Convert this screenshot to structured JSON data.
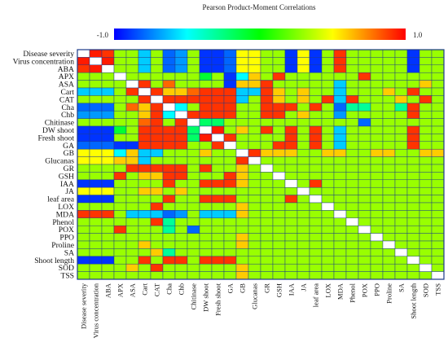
{
  "chart_data": {
    "type": "heatmap",
    "title": "Pearson Product-Moment Correlations",
    "colorbar": {
      "min_label": "-1.0",
      "max_label": "1.0",
      "min": -1.0,
      "max": 1.0,
      "colors": [
        "#0000ff",
        "#00ffff",
        "#00ff00",
        "#ffff00",
        "#ff0000"
      ]
    },
    "rows": [
      "Disease severity",
      "Virus concentration",
      "ABA",
      "APX",
      "ASA",
      "Cart",
      "CAT",
      "Cha",
      "Chb",
      "Chitinase",
      "DW shoot",
      "Fresh shoot",
      "GA",
      "GB",
      "Glucanas",
      "GR",
      "GSH",
      "IAA",
      "JA",
      "leaf area",
      "LOX",
      "MDA",
      "Phenol",
      "POX",
      "PPO",
      "Proline",
      "SA",
      "Shoot length",
      "SOD",
      "TSS"
    ],
    "columns": [
      "Disease severity",
      "Virus concentration",
      "ABA",
      "APX",
      "ASA",
      "Cart",
      "CAT",
      "Cha",
      "Chb",
      "Chitinase",
      "DW shoot",
      "Fresh shoot",
      "GA",
      "GB",
      "Glucanas",
      "GR",
      "GSH",
      "IAA",
      "JA",
      "leaf area",
      "LOX",
      "MDA",
      "Phenol",
      "POX",
      "PPO",
      "Proline",
      "SA",
      "Shoot length",
      "SOD",
      "TSS"
    ],
    "diagonal_color": "#ffffff",
    "values": [
      [
        1.0,
        0.95,
        0.9,
        0.3,
        0.3,
        -0.6,
        0.3,
        -0.8,
        -0.7,
        0.3,
        -0.9,
        -0.9,
        -0.8,
        0.5,
        0.5,
        0.3,
        0.3,
        -0.9,
        0.5,
        -0.9,
        0.3,
        0.9,
        0.3,
        0.3,
        0.3,
        0.3,
        0.3,
        -0.9,
        0.3,
        0.3
      ],
      [
        0.95,
        1.0,
        0.95,
        0.3,
        0.3,
        -0.6,
        0.3,
        -0.8,
        -0.7,
        0.3,
        -0.9,
        -0.9,
        -0.8,
        0.5,
        0.5,
        0.3,
        0.3,
        -0.9,
        0.5,
        -0.9,
        0.3,
        0.9,
        0.3,
        0.3,
        0.3,
        0.3,
        0.3,
        -0.9,
        0.3,
        0.3
      ],
      [
        0.9,
        0.95,
        1.0,
        0.3,
        0.3,
        -0.6,
        0.3,
        -0.8,
        -0.7,
        0.3,
        -0.9,
        -0.9,
        -0.8,
        0.5,
        0.5,
        0.3,
        0.3,
        -0.9,
        0.5,
        -0.9,
        0.3,
        0.9,
        0.3,
        0.3,
        0.3,
        0.3,
        0.3,
        -0.9,
        0.3,
        0.3
      ],
      [
        0.3,
        0.3,
        0.3,
        1.0,
        0.3,
        0.3,
        0.3,
        0.3,
        0.3,
        0.3,
        -0.1,
        0.3,
        -0.9,
        -0.5,
        0.6,
        0.3,
        0.9,
        0.3,
        0.3,
        0.3,
        0.3,
        0.3,
        0.3,
        0.9,
        0.3,
        0.3,
        0.3,
        0.3,
        0.3,
        0.3
      ],
      [
        0.3,
        0.3,
        0.3,
        0.3,
        1.0,
        0.9,
        0.3,
        0.8,
        0.3,
        0.3,
        0.3,
        0.3,
        -0.9,
        0.6,
        0.6,
        0.9,
        0.3,
        0.3,
        0.3,
        0.3,
        0.3,
        -0.6,
        0.3,
        0.3,
        0.3,
        0.3,
        0.3,
        0.3,
        0.6,
        0.3
      ],
      [
        -0.6,
        -0.6,
        -0.6,
        0.3,
        0.9,
        1.0,
        0.9,
        0.6,
        0.6,
        0.8,
        0.9,
        0.9,
        0.9,
        -0.6,
        -0.6,
        0.9,
        0.6,
        0.3,
        0.6,
        0.3,
        0.3,
        -0.6,
        0.3,
        0.3,
        0.3,
        0.6,
        0.3,
        0.9,
        0.3,
        0.3
      ],
      [
        0.3,
        0.3,
        0.3,
        0.3,
        0.3,
        0.9,
        1.0,
        0.9,
        0.9,
        0.9,
        0.9,
        0.9,
        0.9,
        -0.6,
        0.3,
        0.9,
        0.6,
        0.3,
        0.6,
        0.3,
        0.9,
        -0.6,
        0.9,
        0.3,
        0.3,
        0.3,
        0.6,
        0.3,
        0.9,
        0.3
      ],
      [
        -0.8,
        -0.8,
        -0.8,
        0.3,
        0.8,
        0.6,
        0.9,
        1.0,
        -0.5,
        0.3,
        0.9,
        0.9,
        0.9,
        0.3,
        0.3,
        0.9,
        0.9,
        0.9,
        0.3,
        0.9,
        0.3,
        -0.8,
        -0.3,
        -0.3,
        0.3,
        0.3,
        -0.3,
        0.9,
        0.3,
        0.3
      ],
      [
        -0.7,
        -0.7,
        -0.7,
        0.3,
        0.3,
        0.6,
        0.9,
        -0.5,
        1.0,
        0.9,
        0.9,
        0.9,
        0.9,
        0.3,
        0.3,
        0.9,
        0.9,
        0.3,
        0.6,
        0.3,
        0.3,
        -0.7,
        0.3,
        0.3,
        0.3,
        0.3,
        0.3,
        0.9,
        0.3,
        0.3
      ],
      [
        0.3,
        0.3,
        0.3,
        0.3,
        0.3,
        0.8,
        0.9,
        0.3,
        0.9,
        1.0,
        -0.2,
        -0.2,
        0.3,
        0.3,
        0.3,
        0.3,
        0.3,
        0.3,
        0.3,
        0.3,
        0.3,
        0.3,
        0.3,
        -0.8,
        0.3,
        0.3,
        0.3,
        0.3,
        0.3,
        0.3
      ],
      [
        -0.9,
        -0.9,
        -0.9,
        -0.1,
        0.3,
        0.9,
        0.9,
        0.9,
        0.9,
        -0.2,
        1.0,
        0.95,
        0.3,
        0.6,
        0.3,
        0.9,
        0.3,
        0.9,
        0.3,
        0.9,
        0.3,
        -0.6,
        0.3,
        0.3,
        0.3,
        0.3,
        0.3,
        0.9,
        0.3,
        0.3
      ],
      [
        -0.9,
        -0.9,
        -0.9,
        0.3,
        0.3,
        0.9,
        0.9,
        0.9,
        0.9,
        -0.2,
        0.95,
        1.0,
        0.9,
        0.3,
        0.3,
        0.3,
        0.3,
        0.9,
        0.3,
        0.9,
        0.3,
        -0.6,
        0.3,
        0.3,
        0.3,
        0.3,
        0.3,
        0.9,
        0.3,
        0.3
      ],
      [
        -0.8,
        -0.8,
        -0.8,
        -0.9,
        -0.9,
        0.9,
        0.9,
        0.9,
        0.9,
        0.3,
        0.3,
        0.9,
        1.0,
        0.3,
        0.3,
        0.3,
        0.9,
        0.9,
        0.3,
        0.9,
        0.3,
        -0.6,
        0.3,
        0.3,
        0.3,
        0.3,
        0.3,
        0.9,
        0.3,
        0.3
      ],
      [
        0.5,
        0.5,
        0.5,
        -0.5,
        0.6,
        -0.6,
        -0.6,
        0.3,
        0.3,
        0.3,
        0.6,
        0.3,
        0.3,
        1.0,
        0.9,
        0.6,
        0.6,
        0.6,
        0.3,
        0.3,
        0.6,
        0.6,
        0.3,
        0.3,
        0.6,
        0.6,
        0.3,
        0.3,
        0.6,
        0.6
      ],
      [
        0.5,
        0.5,
        0.5,
        0.6,
        0.6,
        -0.6,
        0.3,
        0.3,
        0.3,
        0.3,
        0.3,
        0.3,
        0.3,
        0.9,
        1.0,
        0.3,
        0.3,
        0.3,
        0.3,
        0.3,
        0.3,
        0.3,
        0.3,
        0.3,
        0.3,
        0.3,
        0.3,
        0.3,
        0.3,
        0.3
      ],
      [
        0.3,
        0.3,
        0.3,
        0.3,
        0.9,
        0.9,
        0.9,
        0.9,
        0.9,
        0.3,
        0.9,
        0.3,
        0.3,
        0.6,
        0.3,
        1.0,
        0.3,
        0.3,
        0.3,
        0.3,
        0.3,
        0.3,
        0.3,
        0.3,
        0.3,
        0.3,
        0.3,
        0.3,
        0.3,
        0.3
      ],
      [
        0.3,
        0.3,
        0.3,
        0.9,
        0.3,
        0.6,
        0.6,
        0.9,
        0.9,
        0.3,
        0.3,
        0.3,
        0.9,
        0.6,
        0.3,
        0.3,
        1.0,
        0.3,
        0.3,
        0.3,
        0.3,
        0.3,
        0.3,
        0.3,
        0.3,
        0.3,
        0.3,
        0.3,
        0.3,
        0.3
      ],
      [
        -0.9,
        -0.9,
        -0.9,
        0.3,
        0.3,
        0.3,
        0.3,
        0.9,
        0.3,
        0.3,
        0.9,
        0.9,
        0.9,
        0.6,
        0.3,
        0.3,
        0.3,
        1.0,
        0.3,
        0.9,
        0.3,
        0.3,
        0.3,
        0.3,
        0.3,
        0.3,
        0.3,
        0.3,
        0.3,
        0.3
      ],
      [
        0.5,
        0.5,
        0.5,
        0.3,
        0.3,
        0.6,
        0.6,
        0.3,
        0.6,
        0.3,
        0.3,
        0.3,
        0.3,
        0.3,
        0.3,
        0.3,
        0.3,
        0.3,
        1.0,
        0.3,
        0.3,
        0.3,
        0.3,
        0.3,
        0.3,
        0.3,
        0.3,
        0.3,
        0.3,
        0.3
      ],
      [
        -0.9,
        -0.9,
        -0.9,
        0.3,
        0.3,
        0.3,
        0.3,
        0.9,
        0.3,
        0.3,
        0.9,
        0.9,
        0.9,
        0.3,
        0.3,
        0.3,
        0.3,
        0.9,
        0.3,
        1.0,
        0.3,
        0.3,
        0.3,
        0.3,
        0.3,
        0.3,
        0.3,
        0.3,
        0.3,
        0.3
      ],
      [
        0.3,
        0.3,
        0.3,
        0.3,
        0.3,
        0.3,
        0.9,
        0.3,
        0.3,
        0.3,
        0.3,
        0.3,
        0.3,
        0.6,
        0.3,
        0.3,
        0.3,
        0.3,
        0.3,
        0.3,
        1.0,
        0.3,
        0.3,
        0.3,
        0.3,
        0.3,
        0.3,
        0.3,
        0.3,
        0.3
      ],
      [
        0.9,
        0.9,
        0.9,
        0.3,
        -0.6,
        -0.6,
        -0.6,
        -0.8,
        -0.7,
        0.3,
        -0.6,
        -0.6,
        -0.6,
        0.6,
        0.3,
        0.3,
        0.3,
        0.3,
        0.3,
        0.3,
        0.3,
        1.0,
        0.3,
        0.3,
        0.3,
        0.3,
        0.3,
        0.3,
        0.3,
        0.3
      ],
      [
        0.3,
        0.3,
        0.3,
        0.3,
        0.3,
        0.3,
        0.9,
        -0.3,
        0.3,
        0.3,
        0.3,
        0.3,
        0.3,
        0.3,
        0.3,
        0.3,
        0.3,
        0.3,
        0.3,
        0.3,
        0.3,
        0.3,
        1.0,
        0.3,
        0.3,
        0.3,
        0.3,
        0.3,
        0.3,
        0.3
      ],
      [
        0.3,
        0.3,
        0.3,
        0.9,
        0.3,
        0.3,
        0.3,
        -0.3,
        0.3,
        -0.8,
        0.3,
        0.3,
        0.3,
        0.3,
        0.3,
        0.3,
        0.3,
        0.3,
        0.3,
        0.3,
        0.3,
        0.3,
        0.3,
        1.0,
        0.3,
        0.3,
        0.3,
        0.3,
        0.3,
        0.3
      ],
      [
        0.3,
        0.3,
        0.3,
        0.3,
        0.3,
        0.3,
        0.3,
        0.3,
        0.3,
        0.3,
        0.3,
        0.3,
        0.3,
        0.6,
        0.3,
        0.3,
        0.3,
        0.3,
        0.3,
        0.3,
        0.3,
        0.3,
        0.3,
        0.3,
        1.0,
        0.3,
        0.3,
        0.3,
        0.3,
        0.3
      ],
      [
        0.3,
        0.3,
        0.3,
        0.3,
        0.3,
        0.6,
        0.3,
        0.3,
        0.3,
        0.3,
        0.3,
        0.3,
        0.3,
        0.6,
        0.3,
        0.3,
        0.3,
        0.3,
        0.3,
        0.3,
        0.3,
        0.3,
        0.3,
        0.3,
        0.3,
        1.0,
        0.3,
        0.3,
        0.3,
        0.3
      ],
      [
        0.3,
        0.3,
        0.3,
        0.3,
        0.3,
        0.3,
        0.6,
        -0.3,
        0.3,
        0.3,
        0.3,
        0.3,
        0.3,
        0.3,
        0.3,
        0.3,
        0.3,
        0.3,
        0.3,
        0.3,
        0.3,
        0.3,
        0.3,
        0.3,
        0.3,
        0.3,
        1.0,
        0.3,
        0.3,
        0.3
      ],
      [
        -0.9,
        -0.9,
        -0.9,
        0.3,
        0.3,
        0.9,
        0.3,
        0.9,
        0.9,
        0.3,
        0.9,
        0.9,
        0.9,
        0.3,
        0.3,
        0.3,
        0.3,
        0.3,
        0.3,
        0.3,
        0.3,
        0.3,
        0.3,
        0.3,
        0.3,
        0.3,
        0.3,
        1.0,
        0.3,
        0.3
      ],
      [
        0.3,
        0.3,
        0.3,
        0.3,
        0.6,
        0.3,
        0.9,
        0.3,
        0.3,
        0.3,
        0.3,
        0.3,
        0.3,
        0.6,
        0.3,
        0.3,
        0.3,
        0.3,
        0.3,
        0.3,
        0.3,
        0.3,
        0.3,
        0.3,
        0.3,
        0.3,
        0.3,
        0.3,
        1.0,
        0.3
      ],
      [
        0.3,
        0.3,
        0.3,
        0.3,
        0.3,
        0.3,
        0.3,
        0.3,
        0.3,
        0.3,
        0.3,
        0.3,
        0.3,
        0.6,
        0.3,
        0.3,
        0.3,
        0.3,
        0.3,
        0.3,
        0.3,
        0.3,
        0.3,
        0.3,
        0.3,
        0.3,
        0.3,
        0.3,
        0.3,
        1.0
      ]
    ]
  }
}
